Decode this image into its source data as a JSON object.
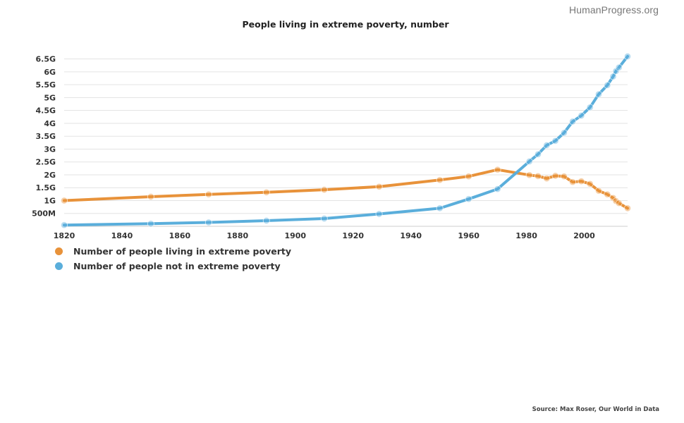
{
  "header": {
    "brand": "HumanProgress.org"
  },
  "footer": {
    "source": "Source: Max Roser, Our World in Data"
  },
  "chart_data": {
    "type": "line",
    "title": "People living in extreme poverty, number",
    "xlabel": "",
    "ylabel": "",
    "xlim": [
      1820,
      2015
    ],
    "ylim": [
      0,
      6.6
    ],
    "x_ticks": [
      1820,
      1840,
      1860,
      1880,
      1900,
      1920,
      1940,
      1960,
      1980,
      2000
    ],
    "x_tick_labels": [
      "1820",
      "1840",
      "1860",
      "1880",
      "1900",
      "1920",
      "1940",
      "1960",
      "1980",
      "2000"
    ],
    "y_ticks": [
      0.5,
      1,
      1.5,
      2,
      2.5,
      3,
      3.5,
      4,
      4.5,
      5,
      5.5,
      6,
      6.5
    ],
    "y_tick_labels": [
      "500M",
      "1G",
      "1.5G",
      "2G",
      "2.5G",
      "3G",
      "3.5G",
      "4G",
      "4.5G",
      "5G",
      "5.5G",
      "6G",
      "6.5G"
    ],
    "y_unit": "billions of people",
    "grid": true,
    "legend_position": "bottom-left",
    "series": [
      {
        "name": "Number of people living in extreme poverty",
        "color": "#e8923a",
        "points": [
          [
            1820,
            1.0
          ],
          [
            1850,
            1.15
          ],
          [
            1870,
            1.24
          ],
          [
            1890,
            1.32
          ],
          [
            1910,
            1.42
          ],
          [
            1929,
            1.54
          ],
          [
            1950,
            1.8
          ],
          [
            1960,
            1.94
          ],
          [
            1970,
            2.2
          ],
          [
            1981,
            1.99
          ],
          [
            1984,
            1.95
          ],
          [
            1987,
            1.86
          ],
          [
            1990,
            1.96
          ],
          [
            1993,
            1.94
          ],
          [
            1996,
            1.72
          ],
          [
            1999,
            1.75
          ],
          [
            2002,
            1.65
          ],
          [
            2005,
            1.38
          ],
          [
            2008,
            1.24
          ],
          [
            2010,
            1.1
          ],
          [
            2011,
            0.98
          ],
          [
            2012,
            0.9
          ],
          [
            2015,
            0.7
          ]
        ]
      },
      {
        "name": "Number of people not in extreme poverty",
        "color": "#5aaedb",
        "points": [
          [
            1820,
            0.05
          ],
          [
            1850,
            0.1
          ],
          [
            1870,
            0.15
          ],
          [
            1890,
            0.22
          ],
          [
            1910,
            0.3
          ],
          [
            1929,
            0.48
          ],
          [
            1950,
            0.7
          ],
          [
            1960,
            1.06
          ],
          [
            1970,
            1.45
          ],
          [
            1981,
            2.52
          ],
          [
            1984,
            2.8
          ],
          [
            1987,
            3.15
          ],
          [
            1990,
            3.32
          ],
          [
            1993,
            3.63
          ],
          [
            1996,
            4.07
          ],
          [
            1999,
            4.3
          ],
          [
            2002,
            4.62
          ],
          [
            2005,
            5.13
          ],
          [
            2008,
            5.48
          ],
          [
            2010,
            5.82
          ],
          [
            2011,
            6.03
          ],
          [
            2012,
            6.17
          ],
          [
            2015,
            6.6
          ]
        ]
      }
    ]
  }
}
